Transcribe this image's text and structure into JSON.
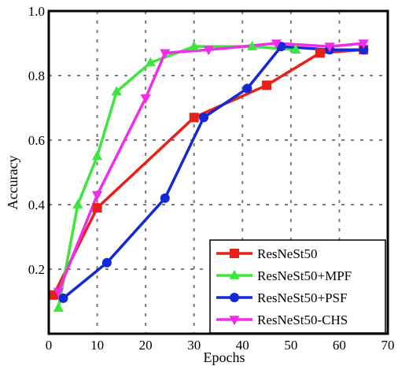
{
  "chart_data": {
    "type": "line",
    "title": "",
    "xlabel": "Epochs",
    "ylabel": "Accuracy",
    "xlim": [
      0,
      70
    ],
    "ylim": [
      0.0,
      1.0
    ],
    "xticks": [
      "0",
      "10",
      "20",
      "30",
      "40",
      "50",
      "60",
      "70"
    ],
    "yticks": [
      "0.2",
      "0.4",
      "0.6",
      "0.8",
      "1.0"
    ],
    "grid": true,
    "legend_position": "bottom-right",
    "series": [
      {
        "name": "ResNeSt50",
        "color": "#e8201a",
        "marker": "square",
        "x": [
          1,
          10,
          30,
          45,
          56,
          65
        ],
        "y": [
          0.12,
          0.39,
          0.67,
          0.77,
          0.87,
          0.88
        ]
      },
      {
        "name": "ResNeSt50+MPF",
        "color": "#3ce63c",
        "marker": "triangle-up",
        "x": [
          2,
          6,
          10,
          14,
          21,
          30,
          42,
          51
        ],
        "y": [
          0.08,
          0.4,
          0.55,
          0.75,
          0.84,
          0.89,
          0.89,
          0.88
        ]
      },
      {
        "name": "ResNeSt50+PSF",
        "color": "#1428d6",
        "marker": "circle",
        "x": [
          3,
          12,
          24,
          32,
          41,
          48,
          58,
          65
        ],
        "y": [
          0.11,
          0.22,
          0.42,
          0.67,
          0.76,
          0.89,
          0.88,
          0.88
        ]
      },
      {
        "name": "ResNeSt50-CHS",
        "color": "#f02ee8",
        "marker": "triangle-down",
        "x": [
          2,
          10,
          20,
          24,
          33,
          47,
          58,
          65
        ],
        "y": [
          0.13,
          0.43,
          0.73,
          0.87,
          0.88,
          0.9,
          0.89,
          0.9
        ]
      }
    ]
  }
}
